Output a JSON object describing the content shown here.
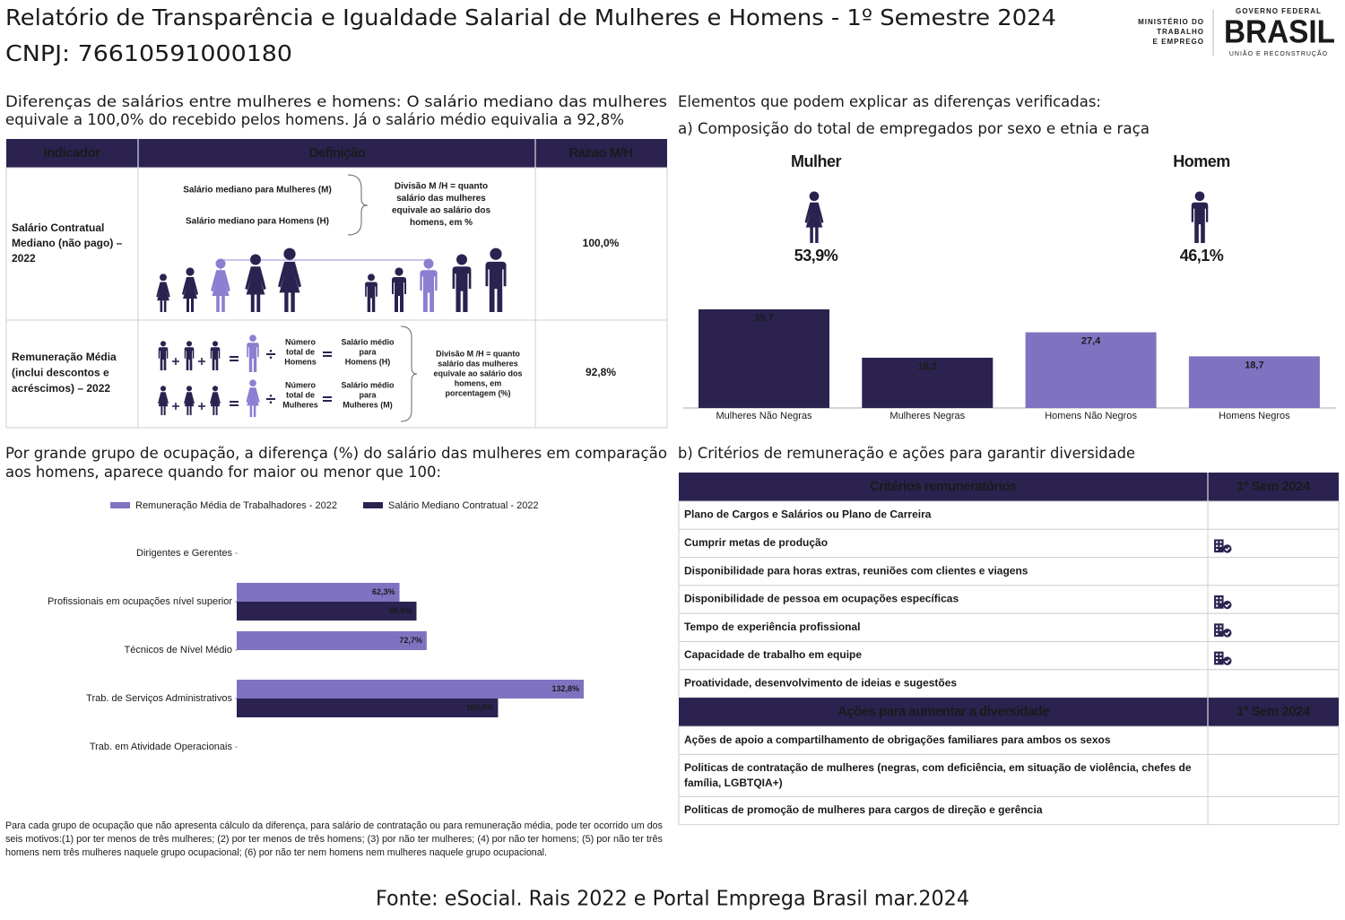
{
  "header": {
    "title": "Relatório de Transparência e Igualdade Salarial de Mulheres e Homens - 1º Semestre 2024",
    "cnpj": "CNPJ: 76610591000180",
    "ministry": [
      "MINISTÉRIO DO",
      "TRABALHO",
      "E EMPREGO"
    ],
    "government": "GOVERNO FEDERAL",
    "brand": "BRASIL",
    "slogan": "UNIÃO E RECONSTRUÇÃO"
  },
  "intro": [
    "Diferenças de salários entre mulheres e homens: O salário mediano das mulheres",
    "equivale a 100,0% do recebido pelos homens. Já o salário médio equivalia a 92,8%"
  ],
  "indicator_table": {
    "headers": [
      "Indicador",
      "Definição",
      "Razao M/H"
    ],
    "rows": [
      {
        "indicator": [
          "Salário Contratual",
          "Mediano (não pago) –",
          "2022"
        ],
        "definition": {
          "median_women": "Salário mediano para Mulheres (M)",
          "median_men": "Salário mediano para Homens (H)",
          "division": [
            "Divisão M /H = quanto",
            "salário das mulheres",
            "equivale ao salário dos",
            "homens, em %"
          ]
        },
        "ratio": "100,0%"
      },
      {
        "indicator": [
          "Remuneração Média",
          "(inclui descontos e",
          "acréscimos) – 2022"
        ],
        "definition": {
          "total_men": [
            "Número",
            "total de",
            "Homens"
          ],
          "avg_men": [
            "Salário médio",
            "para",
            "Homens (H)"
          ],
          "total_women": [
            "Número",
            "total de",
            "Mulheres"
          ],
          "avg_women": [
            "Salário médio",
            "para",
            "Mulheres (M)"
          ],
          "division": [
            "Divisão M /H = quanto",
            "salário das mulheres",
            "equivale ao salário dos",
            "homens, em",
            "porcentagem (%)"
          ]
        },
        "ratio": "92,8%"
      }
    ]
  },
  "composition": {
    "heading": "Elementos que podem explicar as diferenças verificadas:",
    "subtitle": "a) Composição do total de empregados por sexo e etnia e raça",
    "gender": [
      {
        "label": "Mulher",
        "share": "53,9%"
      },
      {
        "label": "Homem",
        "share": "46,1%"
      }
    ]
  },
  "chart_data": [
    {
      "type": "bar",
      "categories": [
        "Mulheres Não Negras",
        "Mulheres Negras",
        "Homens Não Negros",
        "Homens Negros"
      ],
      "values": [
        35.7,
        18.2,
        27.4,
        18.7
      ],
      "value_labels": [
        "35,7",
        "18,2",
        "27,4",
        "18,7"
      ],
      "colors": [
        "#2b2250",
        "#2b2250",
        "#7f73c1",
        "#7f73c1"
      ]
    },
    {
      "type": "hbar",
      "title": [
        "Por grande grupo de ocupação, a diferença (%) do salário das mulheres em comparação",
        "aos homens, aparece quando for maior ou menor que 100:"
      ],
      "categories": [
        "Dirigentes e Gerentes",
        "Profissionais em ocupações nível superior",
        "Técnicos de Nível Médio",
        "Trab. de Serviços Administrativos",
        "Trab. em Atividade Operacionais"
      ],
      "series": [
        {
          "name": "Remuneração Média de Trabalhadores - 2022",
          "color": "#7f73c1",
          "values": [
            null,
            62.3,
            72.7,
            132.8,
            null
          ],
          "value_labels": [
            null,
            "62,3%",
            "72,7%",
            "132,8%",
            null
          ]
        },
        {
          "name": "Salário Mediano Contratual - 2022",
          "color": "#2b2250",
          "values": [
            null,
            68.8,
            null,
            100.0,
            null
          ],
          "value_labels": [
            null,
            "68,8%",
            null,
            "100,0%",
            null
          ]
        }
      ]
    }
  ],
  "criteria": {
    "subtitle": "b) Critérios de remuneração e ações para garantir diversidade",
    "sections": [
      {
        "headers": [
          "Critérios remuneratórios",
          "1º Sem 2024"
        ],
        "rows": [
          {
            "lines": [
              "Plano de Cargos e Salários ou Plano de Carreira"
            ],
            "checked": false
          },
          {
            "lines": [
              "Cumprir metas de produção"
            ],
            "checked": true
          },
          {
            "lines": [
              "Disponibilidade para horas extras, reuniões com clientes e viagens"
            ],
            "checked": false
          },
          {
            "lines": [
              "Disponibilidade de pessoa em ocupações específicas"
            ],
            "checked": true
          },
          {
            "lines": [
              "Tempo de experiência profissional"
            ],
            "checked": true
          },
          {
            "lines": [
              "Capacidade de trabalho em equipe"
            ],
            "checked": true
          },
          {
            "lines": [
              "Proatividade, desenvolvimento de ideias e sugestões"
            ],
            "checked": false
          }
        ]
      },
      {
        "headers": [
          "Ações para aumentar a diversidade",
          "1º Sem 2024"
        ],
        "rows": [
          {
            "lines": [
              "Ações de apoio a compartilhamento de obrigações familiares para ambos os sexos"
            ],
            "checked": false
          },
          {
            "lines": [
              "Politicas de contratação de mulheres (negras, com deficiência, em situação de violência, chefes de",
              "família, LGBTQIA+)"
            ],
            "checked": false
          },
          {
            "lines": [
              "Politicas de promoção de mulheres para cargos de direção e gerência"
            ],
            "checked": false
          }
        ]
      }
    ]
  },
  "footnote": [
    "Para cada grupo de ocupação que não apresenta cálculo da diferença, para salário de contratação ou para remuneração média, pode ter ocorrido um dos",
    "seis motivos:(1) por ter menos de três mulheres; (2) por ter menos de três homens; (3) por não ter mulheres; (4) por não ter homens; (5) por não ter três",
    "homens nem três mulheres naquele grupo ocupacional; (6) por não ter nem homens nem mulheres naquele grupo ocupacional."
  ],
  "source": "Fonte: eSocial. Rais 2022 e Portal Emprega Brasil mar.2024"
}
